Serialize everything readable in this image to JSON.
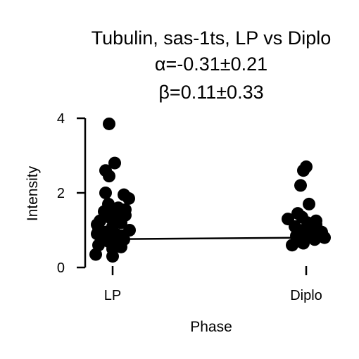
{
  "chart_data": {
    "type": "scatter",
    "title_lines": [
      "Tubulin, sas-1ts, LP vs Diplo",
      "α=-0.31±0.21",
      "β=0.11±0.33"
    ],
    "xlabel": "Phase",
    "ylabel": "Intensity",
    "categories": [
      "LP",
      "Diplo"
    ],
    "ylim": [
      0,
      4
    ],
    "yticks": [
      "0",
      "2",
      "4"
    ],
    "trend": [
      0.76,
      0.8
    ],
    "series": [
      {
        "category": "LP",
        "values": [
          3.85,
          2.8,
          2.6,
          2.45,
          2.0,
          1.95,
          1.85,
          1.7,
          1.6,
          1.55,
          1.5,
          1.45,
          1.4,
          1.35,
          1.3,
          1.25,
          1.2,
          1.15,
          1.1,
          1.05,
          1.0,
          0.95,
          0.9,
          0.88,
          0.85,
          0.8,
          0.75,
          0.7,
          0.65,
          0.6,
          0.55,
          0.5,
          0.35,
          0.3
        ],
        "offsets": [
          -5,
          3,
          -10,
          -5,
          -10,
          16,
          23,
          -6,
          8,
          18,
          -12,
          2,
          18,
          -5,
          6,
          -18,
          12,
          -22,
          0,
          -20,
          24,
          -10,
          -22,
          6,
          14,
          -14,
          16,
          -6,
          8,
          -20,
          12,
          0,
          -24,
          0
        ]
      },
      {
        "category": "Diplo",
        "values": [
          2.7,
          2.6,
          2.2,
          1.7,
          1.45,
          1.35,
          1.3,
          1.25,
          1.2,
          1.15,
          1.1,
          1.05,
          1.0,
          0.95,
          0.9,
          0.85,
          0.8,
          0.75,
          0.7,
          0.65,
          0.6
        ],
        "offsets": [
          0,
          -4,
          -8,
          4,
          -12,
          -6,
          -26,
          14,
          2,
          14,
          -16,
          8,
          -4,
          22,
          0,
          -14,
          26,
          12,
          -14,
          -4,
          -20
        ]
      }
    ]
  }
}
